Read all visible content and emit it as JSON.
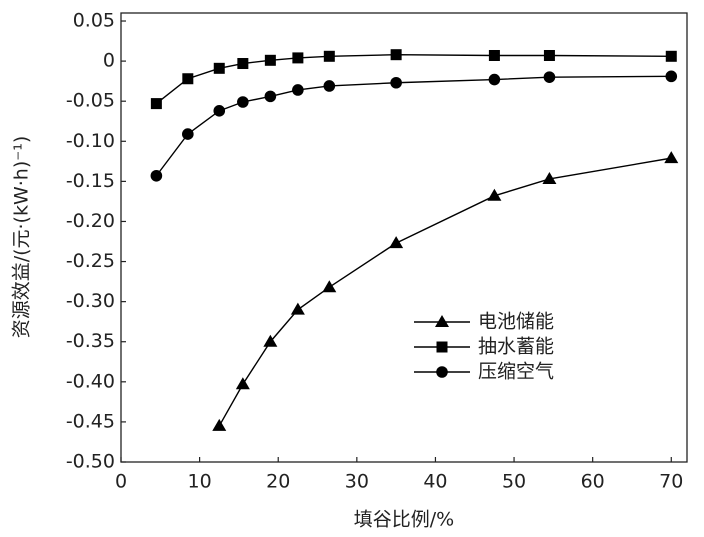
{
  "chart_data": {
    "type": "line",
    "x_label": "填谷比例/%",
    "y_label": "资源效益/(元·(kW·h)⁻¹)",
    "xlim": [
      0,
      72
    ],
    "ylim": [
      -0.5,
      0.06
    ],
    "xticks": [
      0,
      10,
      20,
      30,
      40,
      50,
      60,
      70
    ],
    "yticks": [
      0.05,
      0,
      -0.05,
      {
        "value": -0.1,
        "label": "-0.10"
      },
      -0.15,
      {
        "value": -0.2,
        "label": "-0.20"
      },
      -0.25,
      {
        "value": -0.3,
        "label": "-0.30"
      },
      -0.35,
      {
        "value": -0.4,
        "label": "-0.40"
      },
      -0.45,
      {
        "value": -0.5,
        "label": "-0.50"
      }
    ],
    "grid": false,
    "legend": "center",
    "series": [
      {
        "name": "电池储能",
        "color": "#000000",
        "marker": "triangle",
        "x": [
          12.5,
          15.5,
          19,
          22.5,
          26.5,
          35,
          47.5,
          54.5,
          70
        ],
        "values": [
          -0.455,
          -0.403,
          -0.35,
          -0.31,
          -0.282,
          -0.227,
          -0.168,
          -0.147,
          -0.121
        ]
      },
      {
        "name": "抽水蓄能",
        "color": "#000000",
        "marker": "square",
        "x": [
          4.5,
          8.5,
          12.5,
          15.5,
          19,
          22.5,
          26.5,
          35,
          47.5,
          54.5,
          70
        ],
        "values": [
          -0.053,
          -0.022,
          -0.009,
          -0.003,
          0.001,
          0.004,
          0.006,
          0.008,
          0.007,
          0.007,
          0.006
        ]
      },
      {
        "name": "压缩空气",
        "color": "#000000",
        "marker": "circle",
        "x": [
          4.5,
          8.5,
          12.5,
          15.5,
          19,
          22.5,
          26.5,
          35,
          47.5,
          54.5,
          70
        ],
        "values": [
          -0.143,
          -0.091,
          -0.062,
          -0.051,
          -0.044,
          -0.036,
          -0.031,
          -0.027,
          -0.023,
          -0.02,
          -0.019
        ]
      }
    ]
  }
}
